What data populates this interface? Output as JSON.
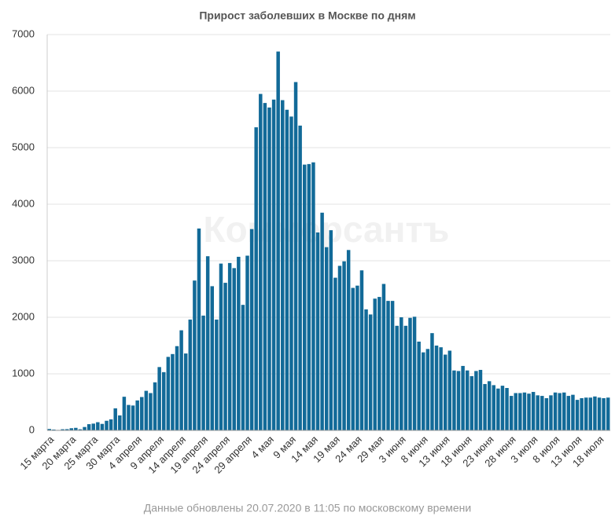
{
  "chart_data": {
    "type": "bar",
    "title": "Прирост заболевших в Москве по дням",
    "watermark": "Коммерсантъ",
    "footer": "Данные обновлены 20.07.2020 в 11:05 по московскому времени",
    "color": "#126a98",
    "grid": true,
    "ylim": [
      0,
      7000
    ],
    "yticks": [
      0,
      1000,
      2000,
      3000,
      4000,
      5000,
      6000,
      7000
    ],
    "categories": [
      "15 марта",
      null,
      null,
      null,
      null,
      "20 марта",
      null,
      null,
      null,
      null,
      "25 марта",
      null,
      null,
      null,
      null,
      "30 марта",
      null,
      null,
      null,
      null,
      "4 апреля",
      null,
      null,
      null,
      null,
      "9 апреля",
      null,
      null,
      null,
      null,
      "14 апреля",
      null,
      null,
      null,
      null,
      "19 апреля",
      null,
      null,
      null,
      null,
      "24 апреля",
      null,
      null,
      null,
      null,
      "29 апреля",
      null,
      null,
      null,
      null,
      "4 мая",
      null,
      null,
      null,
      null,
      "9 мая",
      null,
      null,
      null,
      null,
      "14 мая",
      null,
      null,
      null,
      null,
      "19 мая",
      null,
      null,
      null,
      null,
      "24 мая",
      null,
      null,
      null,
      null,
      "29 мая",
      null,
      null,
      null,
      null,
      "3 июня",
      null,
      null,
      null,
      null,
      "8 июня",
      null,
      null,
      null,
      null,
      "13 июня",
      null,
      null,
      null,
      null,
      "18 июня",
      null,
      null,
      null,
      null,
      "23 июня",
      null,
      null,
      null,
      null,
      "28 июня",
      null,
      null,
      null,
      null,
      "3 июля",
      null,
      null,
      null,
      null,
      "8 июля",
      null,
      null,
      null,
      null,
      "13 июля",
      null,
      null,
      null,
      null,
      "18 июля",
      null,
      null
    ],
    "values": [
      25,
      15,
      8,
      20,
      22,
      38,
      45,
      20,
      60,
      110,
      120,
      145,
      115,
      170,
      195,
      390,
      265,
      595,
      450,
      440,
      530,
      590,
      700,
      660,
      850,
      1120,
      1030,
      1300,
      1350,
      1490,
      1770,
      1360,
      1960,
      2650,
      3570,
      2030,
      3080,
      2550,
      1960,
      2950,
      2610,
      2960,
      2870,
      3070,
      2220,
      3090,
      3560,
      5360,
      5950,
      5790,
      5710,
      5850,
      6700,
      5840,
      5670,
      5550,
      6160,
      5390,
      4700,
      4710,
      4740,
      3500,
      3850,
      3240,
      3540,
      2700,
      2910,
      2990,
      3190,
      2520,
      2560,
      2830,
      2140,
      2050,
      2330,
      2360,
      2590,
      2290,
      2290,
      1850,
      2000,
      1850,
      1990,
      2010,
      1570,
      1380,
      1440,
      1720,
      1500,
      1470,
      1340,
      1410,
      1060,
      1050,
      1140,
      1060,
      960,
      1050,
      1070,
      820,
      870,
      800,
      740,
      790,
      750,
      610,
      660,
      660,
      670,
      650,
      680,
      620,
      610,
      570,
      620,
      670,
      660,
      670,
      610,
      630,
      540,
      570,
      580,
      580,
      600,
      580,
      570,
      580
    ]
  }
}
